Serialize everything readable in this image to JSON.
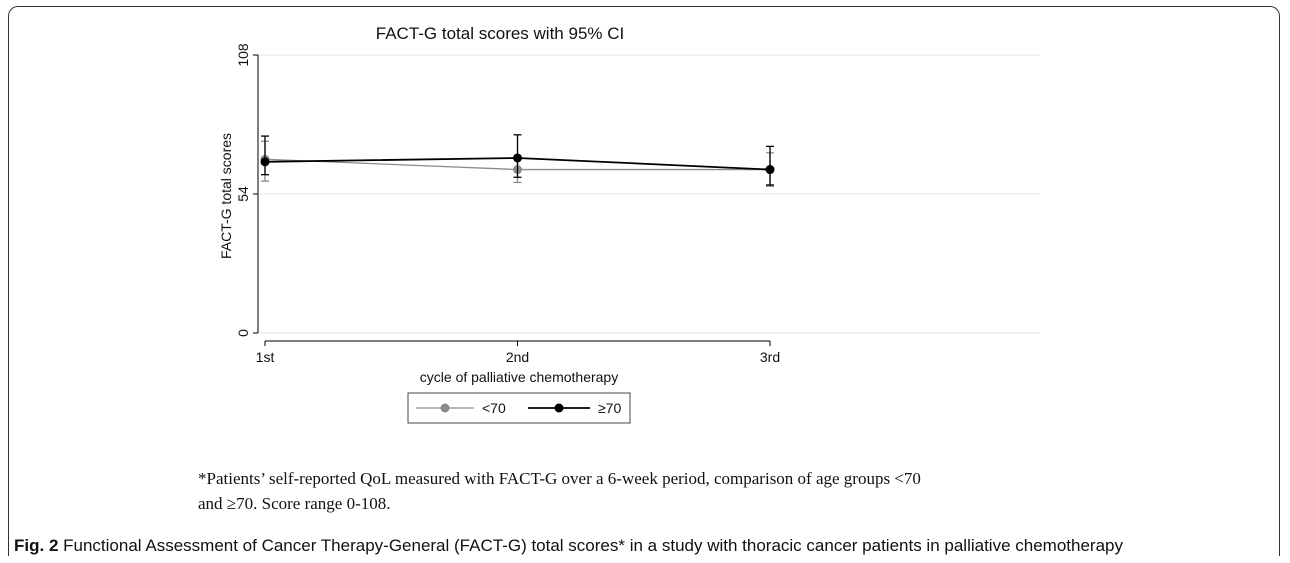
{
  "chart_data": {
    "type": "line",
    "title": "FACT-G total scores with 95% CI",
    "xlabel": "cycle of palliative chemotherapy",
    "ylabel": "FACT-G total scores",
    "categories": [
      "1st",
      "2nd",
      "3rd"
    ],
    "ylim": [
      0,
      108
    ],
    "yticks": [
      "0",
      "54",
      "108"
    ],
    "grid": true,
    "legend_position": "bottom",
    "series": [
      {
        "name": "<70",
        "color": "#8c8c8c",
        "values": [
          67.5,
          63.5,
          63.5
        ],
        "ci_low": [
          59.0,
          58.5,
          57.0
        ],
        "ci_high": [
          74.5,
          68.5,
          70.0
        ]
      },
      {
        "name": "≥70",
        "color": "#000000",
        "values": [
          66.5,
          68.0,
          63.5
        ],
        "ci_low": [
          61.5,
          60.5,
          57.5
        ],
        "ci_high": [
          76.5,
          77.0,
          72.5
        ]
      }
    ]
  },
  "footnote": {
    "line1": "*Patients’ self-reported QoL measured with FACT-G over a 6-week period, comparison of age groups <70",
    "line2": "and ≥70. Score range 0-108."
  },
  "caption": {
    "label": "Fig. 2",
    "text": "Functional Assessment of Cancer Therapy-General (FACT-G) total scores* in a study with thoracic cancer patients in palliative chemotherapy"
  }
}
